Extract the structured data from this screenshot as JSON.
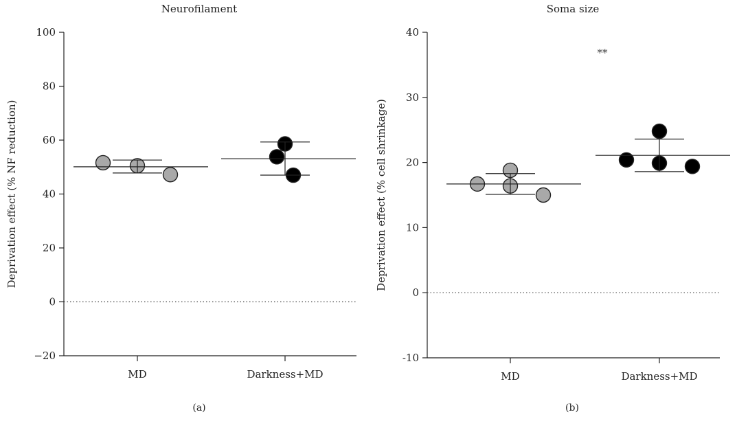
{
  "chart_data": [
    {
      "type": "scatter",
      "panel_label": "(a)",
      "title": "Neurofilament",
      "xlabel": "",
      "ylabel": "Deprivation effect (% NF reduction)",
      "ylim": [
        -20,
        100
      ],
      "yticks": [
        -20,
        0,
        20,
        40,
        60,
        80,
        100
      ],
      "ytick_labels": [
        "−20",
        "0",
        "20",
        "40",
        "60",
        "80",
        "100"
      ],
      "categories": [
        "MD",
        "Darkness+MD"
      ],
      "reference_line": 0,
      "annotation": "",
      "groups": [
        {
          "category": "MD",
          "fill": "#a9a9a9",
          "points": [
            51.6,
            50.5,
            47.2
          ],
          "mean": 50.1,
          "sd_low": 47.8,
          "sd_high": 52.6
        },
        {
          "category": "Darkness+MD",
          "fill": "#000000",
          "points": [
            58.6,
            53.8,
            47.0
          ],
          "mean": 53.1,
          "sd_low": 47.0,
          "sd_high": 59.3
        }
      ]
    },
    {
      "type": "scatter",
      "panel_label": "(b)",
      "title": "Soma size",
      "xlabel": "",
      "ylabel": "Deprivation effect (% cell shrinkage)",
      "ylim": [
        -10,
        40
      ],
      "yticks": [
        -10,
        0,
        10,
        20,
        30,
        40
      ],
      "ytick_labels": [
        "-10",
        "0",
        "10",
        "20",
        "30",
        "40"
      ],
      "categories": [
        "MD",
        "Darkness+MD"
      ],
      "reference_line": 0,
      "annotation": "**",
      "groups": [
        {
          "category": "MD",
          "fill": "#a9a9a9",
          "points": [
            16.7,
            18.8,
            16.4,
            15.0
          ],
          "mean": 16.7,
          "sd_low": 15.1,
          "sd_high": 18.3
        },
        {
          "category": "Darkness+MD",
          "fill": "#000000",
          "points": [
            20.4,
            24.8,
            19.9,
            19.4
          ],
          "mean": 21.1,
          "sd_low": 18.6,
          "sd_high": 23.6
        }
      ]
    }
  ]
}
